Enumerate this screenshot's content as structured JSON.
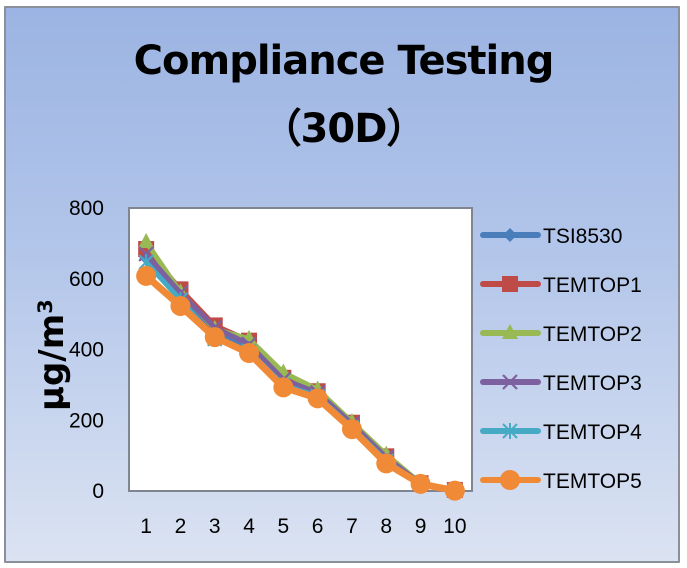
{
  "chart_data": {
    "type": "line",
    "title": "Compliance Testing",
    "subtitle": "（30D）",
    "xlabel": "",
    "ylabel": "µg/m³",
    "ylim": [
      0,
      800
    ],
    "yticks": [
      0,
      200,
      400,
      600,
      800
    ],
    "grid": false,
    "legend_position": "right",
    "categories": [
      "1",
      "2",
      "3",
      "4",
      "5",
      "6",
      "7",
      "8",
      "9",
      "10"
    ],
    "series": [
      {
        "name": "TSI8530",
        "color": "#4a7ebb",
        "marker": "diamond",
        "values": [
          659,
          555,
          450,
          405,
          310,
          270,
          185,
          90,
          20,
          2
        ]
      },
      {
        "name": "TEMTOP1",
        "color": "#be4b48",
        "marker": "square",
        "values": [
          684,
          570,
          468,
          425,
          320,
          282,
          193,
          98,
          22,
          3
        ]
      },
      {
        "name": "TEMTOP2",
        "color": "#98b954",
        "marker": "triangle",
        "values": [
          704,
          562,
          458,
          430,
          335,
          287,
          195,
          103,
          22,
          3
        ]
      },
      {
        "name": "TEMTOP3",
        "color": "#7d60a0",
        "marker": "x",
        "values": [
          670,
          560,
          462,
          415,
          315,
          278,
          190,
          95,
          21,
          2
        ]
      },
      {
        "name": "TEMTOP4",
        "color": "#46aac5",
        "marker": "star",
        "values": [
          647,
          540,
          430,
          395,
          300,
          268,
          180,
          85,
          20,
          2
        ]
      },
      {
        "name": "TEMTOP5",
        "color": "#f08a36",
        "marker": "circle",
        "values": [
          608,
          523,
          435,
          390,
          293,
          262,
          175,
          78,
          20,
          1
        ]
      }
    ]
  },
  "header": {
    "title_line1": "Compliance Testing",
    "title_line2": "（30D）"
  },
  "axis": {
    "ylabel": "µg/m³"
  }
}
